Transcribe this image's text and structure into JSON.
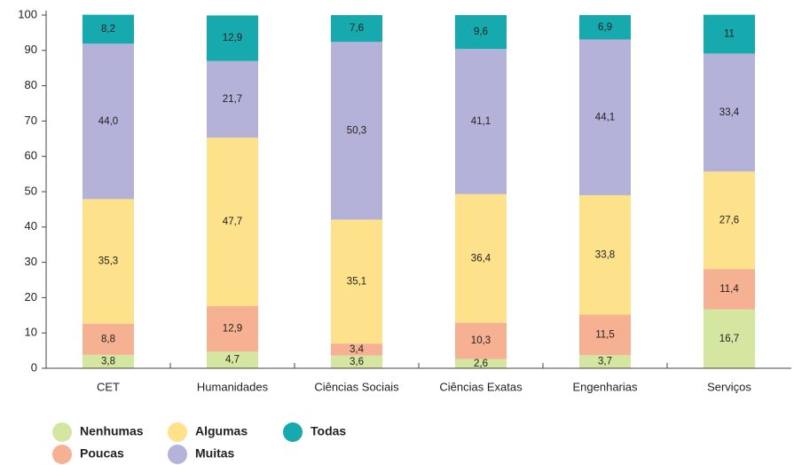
{
  "chart_data": {
    "type": "stacked_bar",
    "categories": [
      "CET",
      "Humanidades",
      "Ciências Sociais",
      "Ciências Exatas",
      "Engenharias",
      "Serviços"
    ],
    "series": [
      {
        "name": "Nenhumas",
        "color": "#d5e6a1",
        "values": [
          3.8,
          4.7,
          3.6,
          2.6,
          3.7,
          16.7
        ],
        "value_labels": [
          "3,8",
          "4,7",
          "3,6",
          "2,6",
          "3,7",
          "16,7"
        ]
      },
      {
        "name": "Poucas",
        "color": "#f6b193",
        "values": [
          8.8,
          12.9,
          3.4,
          10.3,
          11.5,
          11.4
        ],
        "value_labels": [
          "8,8",
          "12,9",
          "3,4",
          "10,3",
          "11,5",
          "11,4"
        ]
      },
      {
        "name": "Algumas",
        "color": "#fde18b",
        "values": [
          35.3,
          47.7,
          35.1,
          36.4,
          33.8,
          27.6
        ],
        "value_labels": [
          "35,3",
          "47,7",
          "35,1",
          "36,4",
          "33,8",
          "27,6"
        ]
      },
      {
        "name": "Muitas",
        "color": "#b4b2d9",
        "values": [
          44.0,
          21.7,
          50.3,
          41.1,
          44.1,
          33.4
        ],
        "value_labels": [
          "44,0",
          "21,7",
          "50,3",
          "41,1",
          "44,1",
          "33,4"
        ]
      },
      {
        "name": "Todas",
        "color": "#16a9ae",
        "values": [
          8.2,
          12.9,
          7.6,
          9.6,
          6.9,
          11
        ],
        "value_labels": [
          "8,2",
          "12,9",
          "7,6",
          "9,6",
          "6,9",
          "11"
        ]
      }
    ],
    "ylim": [
      0,
      100
    ],
    "yticks": [
      0,
      10,
      20,
      30,
      40,
      50,
      60,
      70,
      80,
      90,
      100
    ],
    "grid": false
  }
}
